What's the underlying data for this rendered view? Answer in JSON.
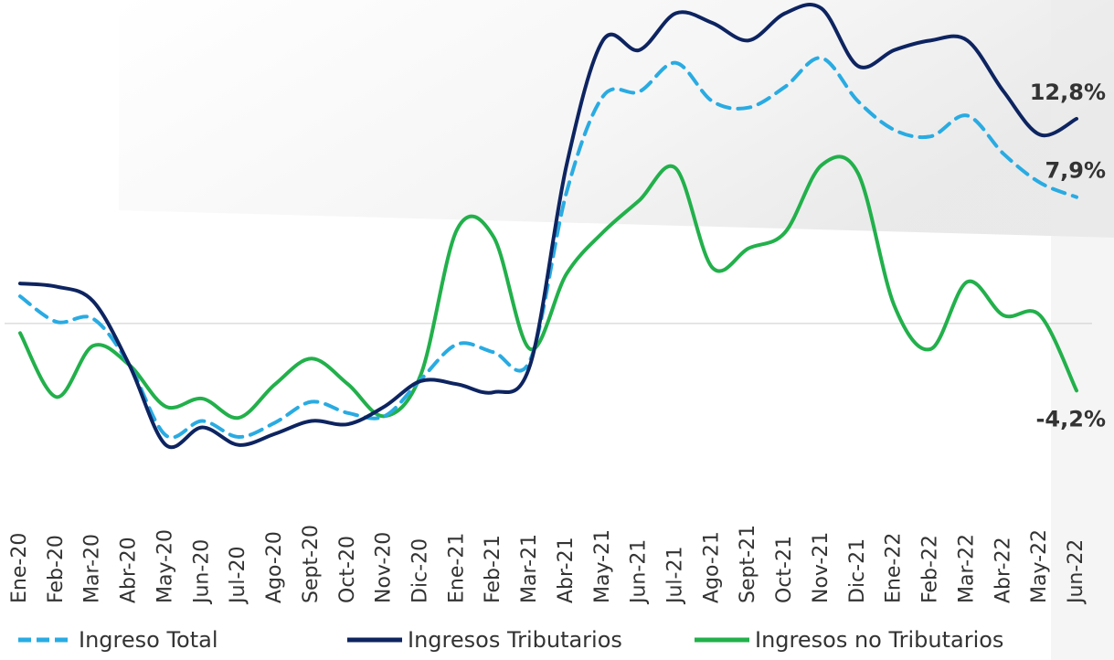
{
  "chart_data": {
    "type": "line",
    "categories": [
      "Ene-20",
      "Feb-20",
      "Mar-20",
      "Abr-20",
      "May-20",
      "Jun-20",
      "Jul-20",
      "Ago-20",
      "Sept-20",
      "Oct-20",
      "Nov-20",
      "Dic-20",
      "Ene-21",
      "Feb-21",
      "Mar-21",
      "Abr-21",
      "May-21",
      "Jun-21",
      "Jul-21",
      "Ago-21",
      "Sept-21",
      "Oct-21",
      "Nov-21",
      "Dic-21",
      "Ene-22",
      "Feb-22",
      "Mar-22",
      "Abr-22",
      "May-22",
      "Jun-22"
    ],
    "ylim": [
      -9.5,
      20
    ],
    "series": [
      {
        "name": "Ingreso Total",
        "color": "#29abe2",
        "dashed": true,
        "values": [
          1.7,
          0.1,
          0.3,
          -2.6,
          -7.0,
          -6.1,
          -7.1,
          -6.2,
          -4.9,
          -5.6,
          -5.8,
          -3.5,
          -1.3,
          -1.8,
          -2.3,
          8.2,
          14.2,
          14.5,
          16.3,
          13.9,
          13.5,
          14.8,
          16.6,
          13.9,
          12.1,
          11.7,
          13.0,
          10.6,
          8.8,
          7.9
        ],
        "value_labels": [
          null,
          null,
          null,
          null,
          null,
          null,
          null,
          null,
          null,
          null,
          null,
          null,
          null,
          null,
          null,
          null,
          null,
          null,
          null,
          null,
          null,
          null,
          null,
          null,
          null,
          null,
          null,
          null,
          null,
          "7,9%"
        ]
      },
      {
        "name": "Ingresos Tributarios",
        "color": "#0d2460",
        "dashed": false,
        "values": [
          2.5,
          2.3,
          1.4,
          -2.6,
          -7.6,
          -6.5,
          -7.6,
          -6.9,
          -6.1,
          -6.3,
          -5.2,
          -3.6,
          -3.8,
          -4.3,
          -2.6,
          9.9,
          17.7,
          17.1,
          19.4,
          18.8,
          17.7,
          19.4,
          19.7,
          16.1,
          17.1,
          17.7,
          17.7,
          14.5,
          11.8,
          12.8
        ],
        "value_labels": [
          null,
          null,
          null,
          null,
          null,
          null,
          null,
          null,
          null,
          null,
          null,
          null,
          null,
          null,
          null,
          null,
          null,
          null,
          null,
          null,
          null,
          null,
          null,
          null,
          null,
          null,
          null,
          null,
          null,
          "12,8%"
        ]
      },
      {
        "name": "Ingresos no Tributarios",
        "color": "#22b04b",
        "dashed": false,
        "values": [
          -0.6,
          -4.6,
          -1.4,
          -2.6,
          -5.2,
          -4.7,
          -5.9,
          -3.8,
          -2.2,
          -3.8,
          -5.8,
          -3.2,
          5.9,
          5.4,
          -1.6,
          3.1,
          5.7,
          7.7,
          9.7,
          3.5,
          4.7,
          5.7,
          9.9,
          9.4,
          1.1,
          -1.6,
          2.6,
          0.5,
          0.5,
          -4.2
        ],
        "value_labels": [
          null,
          null,
          null,
          null,
          null,
          null,
          null,
          null,
          null,
          null,
          null,
          null,
          null,
          null,
          null,
          null,
          null,
          null,
          null,
          null,
          null,
          null,
          null,
          null,
          null,
          null,
          null,
          null,
          null,
          "-4,2%"
        ]
      }
    ]
  }
}
